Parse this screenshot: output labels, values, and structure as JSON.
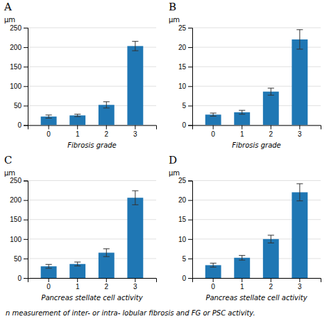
{
  "chart_data": [
    {
      "type": "bar",
      "title": "A",
      "xlabel": "Fibrosis grade",
      "ylabel": "μm",
      "categories": [
        0,
        1,
        2,
        3
      ],
      "values": [
        22,
        25,
        52,
        203
      ],
      "errors": [
        4,
        3,
        8,
        12
      ],
      "ylim": [
        0,
        250
      ],
      "yticks": [
        0,
        50,
        100,
        150,
        200,
        250
      ],
      "grid": true
    },
    {
      "type": "bar",
      "title": "B",
      "xlabel": "Fibrosis grade",
      "ylabel": "μm",
      "categories": [
        0,
        1,
        2,
        3
      ],
      "values": [
        2.7,
        3.3,
        8.6,
        22
      ],
      "errors": [
        0.4,
        0.5,
        0.9,
        2.5
      ],
      "ylim": [
        0,
        25
      ],
      "yticks": [
        0,
        5,
        10,
        15,
        20,
        25
      ],
      "grid": true
    },
    {
      "type": "bar",
      "title": "C",
      "xlabel": "Pancreas stellate cell activity",
      "ylabel": "μm",
      "categories": [
        0,
        1,
        2,
        3
      ],
      "values": [
        30,
        36,
        65,
        206
      ],
      "errors": [
        5,
        5,
        10,
        18
      ],
      "ylim": [
        0,
        250
      ],
      "yticks": [
        0,
        50,
        100,
        150,
        200,
        250
      ],
      "grid": true
    },
    {
      "type": "bar",
      "title": "D",
      "xlabel": "Pancreas stellate cell activity",
      "ylabel": "μm",
      "categories": [
        0,
        1,
        2,
        3
      ],
      "values": [
        3.3,
        5.2,
        10.0,
        22
      ],
      "errors": [
        0.5,
        0.6,
        1.0,
        2.2
      ],
      "ylim": [
        0,
        25
      ],
      "yticks": [
        0,
        5,
        10,
        15,
        20,
        25
      ],
      "grid": true
    }
  ],
  "caption": "n measurement of inter- or intra- lobular fibrosis and FG or PSC activity."
}
